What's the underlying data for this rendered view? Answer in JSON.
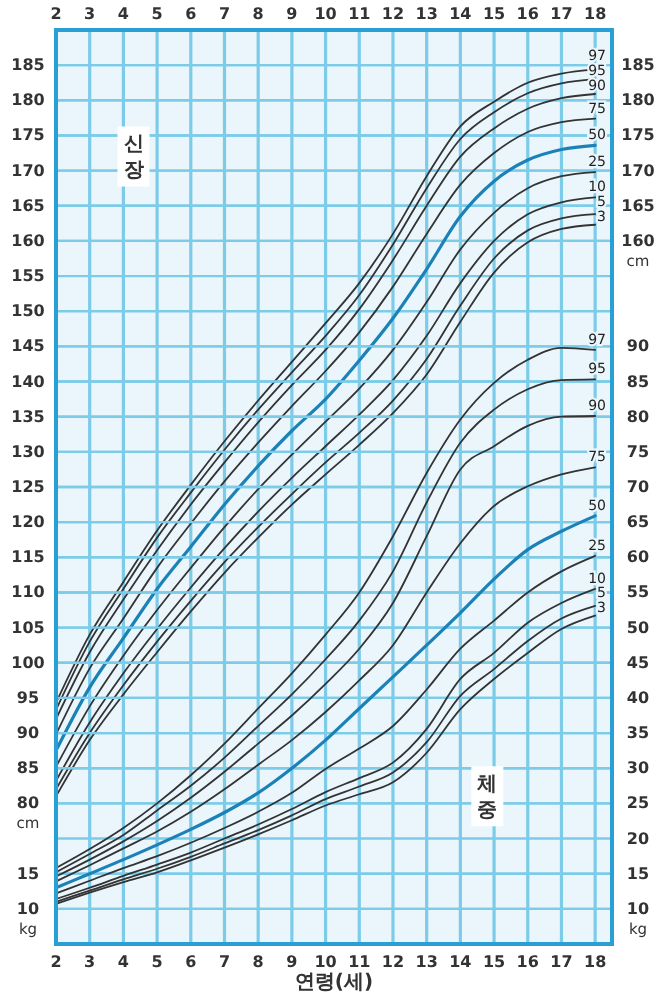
{
  "chart_data": [
    {
      "type": "line",
      "annotations": [
        "신장"
      ],
      "x": [
        2,
        3,
        4,
        5,
        6,
        7,
        8,
        9,
        10,
        11,
        12,
        13,
        14,
        15,
        16,
        17,
        18
      ],
      "xlim": [
        2,
        18.5
      ],
      "x2lim": [
        2,
        18.5
      ],
      "x2ticks": [
        2,
        3,
        4,
        5,
        6,
        7,
        8,
        9,
        10,
        11,
        12,
        13,
        14,
        15,
        16,
        17,
        18
      ],
      "ylim": [
        60,
        190
      ],
      "yticks": [
        80,
        85,
        90,
        95,
        100,
        105,
        110,
        115,
        120,
        125,
        130,
        135,
        140,
        145,
        150,
        155,
        160,
        165,
        170,
        175,
        180,
        185
      ],
      "ylabel": "cm",
      "y2lim": [
        60,
        190
      ],
      "y2ticks": [
        160,
        165,
        170,
        175,
        180,
        185
      ],
      "y2label": "cm",
      "grid": true,
      "legend": false,
      "marker": "none",
      "line_style": "solid",
      "series": [
        {
          "name": "97",
          "color": "#333333",
          "values": [
            94.3,
            104,
            111.5,
            118.8,
            125.3,
            131.5,
            137.3,
            142.8,
            148.3,
            154,
            161,
            169.2,
            176.3,
            179.8,
            182.5,
            183.8,
            184.4
          ]
        },
        {
          "name": "95",
          "color": "#333333",
          "values": [
            93.3,
            103,
            110.5,
            117.8,
            124.2,
            130.3,
            136,
            141.3,
            146.5,
            152.3,
            159.5,
            167.5,
            174.5,
            178.3,
            181,
            182.4,
            183
          ]
        },
        {
          "name": "90",
          "color": "#333333",
          "values": [
            92,
            101.5,
            109,
            116,
            122.5,
            128.5,
            134.2,
            139.5,
            144.5,
            150.3,
            157.3,
            165,
            172,
            176,
            178.8,
            180.3,
            180.9
          ]
        },
        {
          "name": "75",
          "color": "#333333",
          "values": [
            89.8,
            99.2,
            106.3,
            113.5,
            119.8,
            125.8,
            131.3,
            136.5,
            141.5,
            147,
            153.5,
            161,
            168,
            172.5,
            175.5,
            176.9,
            177.4
          ]
        },
        {
          "name": "50",
          "color": "#1b82b8",
          "values": [
            87.5,
            96.5,
            103.5,
            110.5,
            116.5,
            122.5,
            128,
            133,
            137.5,
            143,
            149,
            156,
            163.5,
            168.5,
            171.5,
            173,
            173.6
          ]
        },
        {
          "name": "25",
          "color": "#333333",
          "values": [
            85.2,
            93.8,
            101,
            107.5,
            113.5,
            119.3,
            124.7,
            129.6,
            134.3,
            139,
            144.5,
            151.3,
            158.8,
            164,
            167.5,
            169.2,
            169.8
          ]
        },
        {
          "name": "10",
          "color": "#333333",
          "values": [
            83.2,
            91.5,
            98.5,
            104.8,
            110.7,
            116.3,
            121.5,
            126.3,
            130.8,
            135.3,
            140.2,
            146.5,
            154,
            160,
            163.8,
            165.5,
            166.2
          ]
        },
        {
          "name": "5",
          "color": "#333333",
          "values": [
            82,
            90,
            96.8,
            103,
            108.8,
            114.3,
            119.3,
            124,
            128.5,
            132.7,
            137.3,
            143.2,
            150.8,
            157.5,
            161.5,
            163.2,
            163.8
          ]
        },
        {
          "name": "3",
          "color": "#333333",
          "values": [
            81,
            89,
            95.5,
            101.5,
            107.3,
            112.8,
            117.8,
            122.5,
            126.8,
            131,
            135.5,
            141,
            148.5,
            155.5,
            159.8,
            161.7,
            162.3
          ]
        }
      ]
    },
    {
      "type": "line",
      "xlabel": "연령(세)",
      "annotations": [
        "체중"
      ],
      "x": [
        2,
        3,
        4,
        5,
        6,
        7,
        8,
        9,
        10,
        11,
        12,
        13,
        14,
        15,
        16,
        17,
        18
      ],
      "xlim": [
        2,
        18.5
      ],
      "xticks": [
        2,
        3,
        4,
        5,
        6,
        7,
        8,
        9,
        10,
        11,
        12,
        13,
        14,
        15,
        16,
        17,
        18
      ],
      "ylim": [
        5,
        135
      ],
      "yticks": [
        10,
        15
      ],
      "ylabel": "kg",
      "y2lim": [
        5,
        135
      ],
      "y2ticks": [
        10,
        15,
        20,
        25,
        30,
        35,
        40,
        45,
        50,
        55,
        60,
        65,
        70,
        75,
        80,
        85,
        90
      ],
      "y2label": "kg",
      "grid": "y",
      "legend": false,
      "marker": "none",
      "line_style": "solid",
      "series": [
        {
          "name": "97",
          "color": "#333333",
          "values": [
            15.8,
            18.5,
            21.5,
            25,
            29,
            33.5,
            38.5,
            43.5,
            49,
            55,
            63,
            72,
            79.6,
            84.8,
            88.1,
            89.8,
            89.5
          ]
        },
        {
          "name": "95",
          "color": "#333333",
          "values": [
            15.2,
            17.8,
            20.5,
            24,
            27.5,
            31.5,
            36,
            40.5,
            45.5,
            51,
            58,
            67.8,
            76.3,
            81,
            83.9,
            85.2,
            85.3
          ]
        },
        {
          "name": "90",
          "color": "#333333",
          "values": [
            14.6,
            17,
            19.6,
            22.5,
            25.8,
            29.5,
            33.5,
            37.5,
            42,
            47,
            53.5,
            63,
            72.5,
            75.8,
            78.7,
            80,
            80.1
          ]
        },
        {
          "name": "75",
          "color": "#333333",
          "values": [
            13.9,
            16.2,
            18.6,
            21,
            23.8,
            27,
            30.5,
            34,
            38,
            42.5,
            47.5,
            55,
            62,
            67.3,
            70.1,
            71.8,
            72.8
          ]
        },
        {
          "name": "50",
          "color": "#1b82b8",
          "values": [
            13,
            15,
            17,
            19.1,
            21.3,
            23.7,
            26.5,
            30,
            34,
            38.5,
            43,
            47.5,
            52.1,
            56.9,
            61.1,
            63.7,
            65.9
          ]
        },
        {
          "name": "25",
          "color": "#333333",
          "values": [
            12.2,
            14,
            15.8,
            17.5,
            19.4,
            21.5,
            23.8,
            26.5,
            29.9,
            32.8,
            36,
            41.2,
            47,
            51,
            55,
            58,
            60.2
          ]
        },
        {
          "name": "10",
          "color": "#333333",
          "values": [
            11.4,
            13,
            14.7,
            16.3,
            18,
            20,
            22,
            24.2,
            26.6,
            28.6,
            30.8,
            35.6,
            42.7,
            46.4,
            50.7,
            53.5,
            55.5
          ]
        },
        {
          "name": "5",
          "color": "#333333",
          "values": [
            11,
            12.6,
            14.2,
            15.7,
            17.4,
            19.3,
            21.2,
            23.3,
            25.6,
            27.4,
            29.4,
            33.7,
            40.3,
            44.1,
            48.1,
            51.3,
            53.1
          ]
        },
        {
          "name": "3",
          "color": "#333333",
          "values": [
            10.7,
            12.3,
            13.8,
            15.2,
            16.9,
            18.7,
            20.6,
            22.6,
            24.7,
            26.3,
            28,
            32.2,
            38.4,
            42.7,
            46.4,
            49.8,
            51.7
          ]
        }
      ]
    }
  ]
}
